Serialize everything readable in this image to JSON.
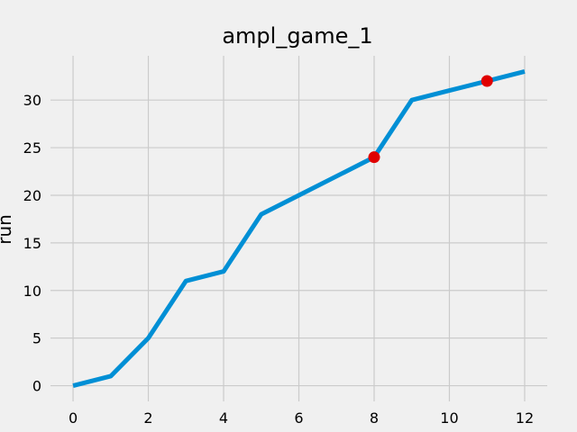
{
  "chart_data": {
    "type": "line",
    "title": "ampl_game_1",
    "xlabel": "",
    "ylabel": "run",
    "xlim": [
      -0.6,
      12.6
    ],
    "ylim": [
      -1.65,
      34.65
    ],
    "x_ticks": [
      0,
      2,
      4,
      6,
      8,
      10,
      12
    ],
    "y_ticks": [
      0,
      5,
      10,
      15,
      20,
      25,
      30
    ],
    "grid": true,
    "series": [
      {
        "x": [
          0,
          1,
          2,
          3,
          4,
          5,
          6,
          7,
          8,
          9,
          10,
          11,
          12
        ],
        "values": [
          0,
          1,
          5,
          11,
          12,
          18,
          20,
          22,
          24,
          30,
          31,
          32,
          33
        ],
        "color": "#008fd5"
      }
    ],
    "highlight_points": {
      "x": [
        8,
        11
      ],
      "values": [
        24,
        32
      ],
      "color": "#e00000"
    }
  }
}
